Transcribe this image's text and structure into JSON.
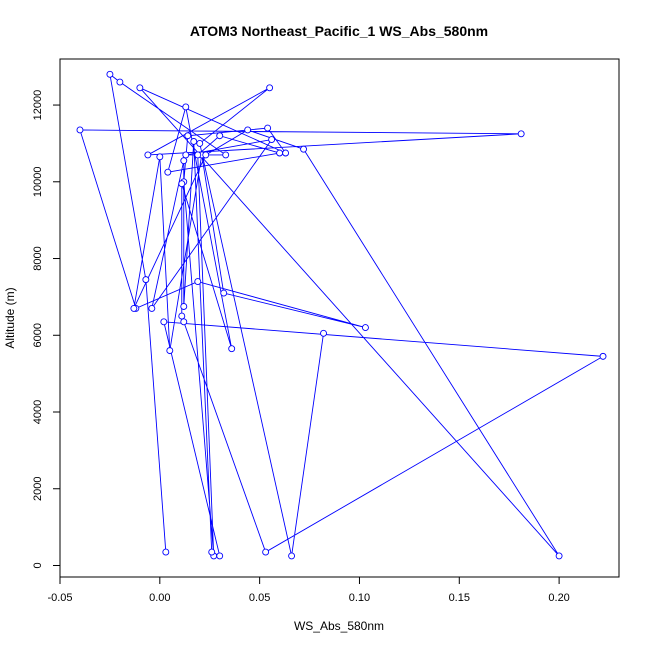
{
  "chart_data": {
    "type": "line",
    "title": "ATOM3 Northeast_Pacific_1 WS_Abs_580nm",
    "xlabel": "WS_Abs_580nm",
    "ylabel": "Altitude (m)",
    "xlim": [
      -0.05,
      0.23
    ],
    "ylim": [
      -300,
      13200
    ],
    "xticks": [
      -0.05,
      0.0,
      0.05,
      0.1,
      0.15,
      0.2
    ],
    "xtick_labels": [
      "-0.05",
      "0.00",
      "0.05",
      "0.10",
      "0.15",
      "0.20"
    ],
    "yticks": [
      0,
      2000,
      4000,
      6000,
      8000,
      10000,
      12000
    ],
    "ytick_labels": [
      "0",
      "2000",
      "4000",
      "6000",
      "8000",
      "10000",
      "12000"
    ],
    "grid": false,
    "legend": "none",
    "series": [
      {
        "color": "#0000ff",
        "marker": "open-circle",
        "x": [
          0.082,
          0.066,
          0.02,
          0.055,
          -0.006,
          0.181,
          -0.04,
          -0.012,
          0.019,
          0.103,
          0.032,
          0.021,
          0.005,
          0.0,
          -0.013,
          0.023,
          0.044,
          0.072,
          0.2,
          -0.01,
          0.063,
          0.054,
          0.014,
          0.012,
          0.027,
          0.019,
          0.03,
          0.06,
          0.004,
          0.013,
          0.036,
          0.011,
          0.011,
          0.012,
          0.053,
          0.222,
          0.002,
          0.03,
          0.026,
          0.017,
          0.012,
          0.012,
          -0.004,
          0.056,
          0.013,
          0.033,
          -0.02,
          -0.025,
          -0.007,
          0.003
        ],
        "y": [
          6050,
          250,
          11000,
          12450,
          10700,
          11250,
          11350,
          6700,
          7400,
          6200,
          7100,
          10700,
          5600,
          10650,
          6700,
          10700,
          11350,
          10850,
          250,
          12450,
          10750,
          11400,
          11200,
          10000,
          250,
          10700,
          11200,
          10750,
          10250,
          11950,
          5650,
          9950,
          6500,
          6350,
          350,
          5450,
          6350,
          250,
          350,
          11050,
          6750,
          10550,
          6700,
          11100,
          10700,
          10700,
          12600,
          12800,
          7450,
          350
        ]
      }
    ]
  }
}
